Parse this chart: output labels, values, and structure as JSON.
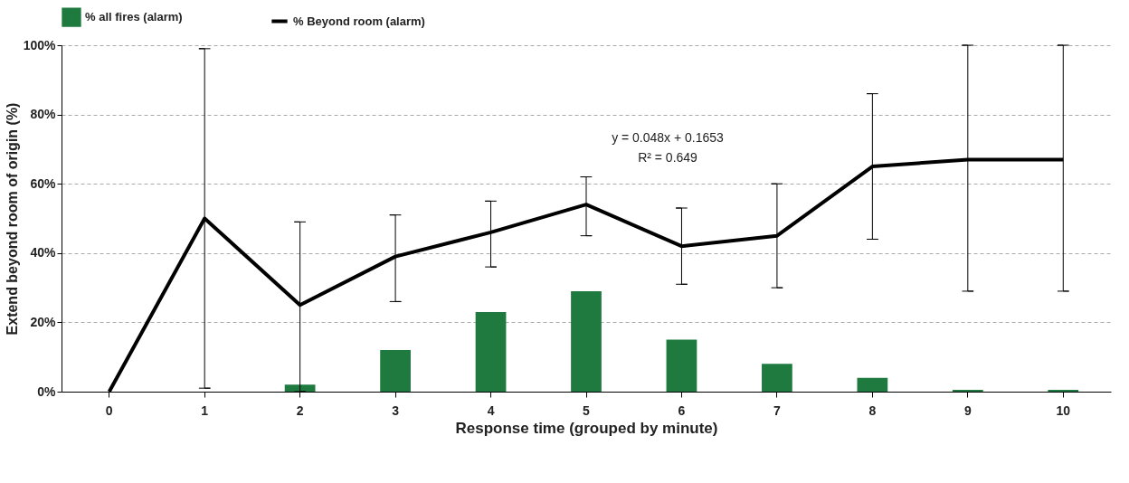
{
  "chart_data": {
    "type": "bar",
    "xlabel": "Response time (grouped by minute)",
    "ylabel": "Extend beyond room of origin (%)",
    "categories": [
      "0",
      "1",
      "2",
      "3",
      "4",
      "5",
      "6",
      "7",
      "8",
      "9",
      "10"
    ],
    "series": [
      {
        "name": "% all fires (alarm)",
        "color": "#1f7a40",
        "values": [
          0,
          0,
          2,
          12,
          23,
          29,
          15,
          8,
          4,
          0.5,
          0.5
        ]
      },
      {
        "name": "% Beyond room (alarm)",
        "type": "line",
        "color": "#000000",
        "values": [
          0,
          50,
          25,
          39,
          46,
          54,
          42,
          45,
          65,
          67,
          67
        ],
        "errors": [
          null,
          [
            1,
            99
          ],
          [
            0,
            49
          ],
          [
            26,
            51
          ],
          [
            36,
            55
          ],
          [
            45,
            62
          ],
          [
            31,
            53
          ],
          [
            30,
            60
          ],
          [
            44,
            86
          ],
          [
            29,
            100
          ],
          [
            29,
            100
          ]
        ]
      }
    ],
    "ylim": [
      0,
      100
    ],
    "yticks": [
      {
        "value": 0,
        "label": "0%"
      },
      {
        "value": 20,
        "label": "20%"
      },
      {
        "value": 40,
        "label": "40%"
      },
      {
        "value": 60,
        "label": "60%"
      },
      {
        "value": 80,
        "label": "80%"
      },
      {
        "value": 100,
        "label": "100%"
      }
    ],
    "grid": "y",
    "legend": "top",
    "line_style": "solid",
    "marker": "none",
    "annotations": [
      "y = 0.048x + 0.1653",
      "R² = 0.649"
    ]
  }
}
